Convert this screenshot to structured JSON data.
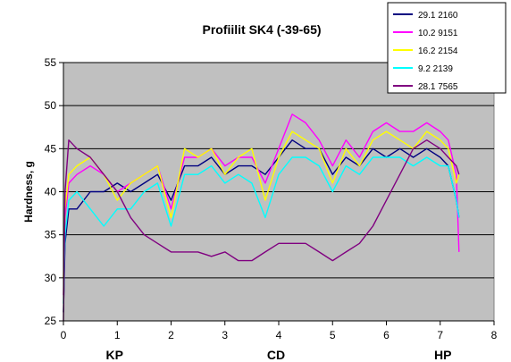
{
  "chart_data": {
    "type": "line",
    "title": "Profiilit SK4 (-39-65)",
    "xlabel": "",
    "ylabel": "Hardness, g",
    "xlim": [
      0,
      8
    ],
    "ylim": [
      25,
      55
    ],
    "x_ticks": [
      0,
      1,
      2,
      3,
      4,
      5,
      6,
      7,
      8
    ],
    "y_ticks": [
      25,
      30,
      35,
      40,
      45,
      50,
      55
    ],
    "grid": "horizontal",
    "plot_background": "#c0c0c0",
    "legend_position": "top-right",
    "position_markers": [
      {
        "label": "KP",
        "x": 0.95
      },
      {
        "label": "CD",
        "x": 3.95
      },
      {
        "label": "HP",
        "x": 7.05
      }
    ],
    "series": [
      {
        "name": "29.1 2160",
        "color": "#000080",
        "x": [
          0,
          0.03,
          0.1,
          0.25,
          0.5,
          0.75,
          1.0,
          1.25,
          1.5,
          1.75,
          2.0,
          2.25,
          2.5,
          2.75,
          3.0,
          3.25,
          3.5,
          3.75,
          4.0,
          4.25,
          4.5,
          4.75,
          5.0,
          5.25,
          5.5,
          5.75,
          6.0,
          6.25,
          6.5,
          6.75,
          7.0,
          7.15,
          7.3,
          7.35
        ],
        "values": [
          26,
          34,
          38,
          38,
          40,
          40,
          41,
          40,
          41,
          42,
          39,
          43,
          43,
          44,
          42,
          43,
          43,
          42,
          44,
          46,
          45,
          45,
          42,
          44,
          43,
          45,
          44,
          45,
          44,
          45,
          44,
          43,
          39,
          37
        ]
      },
      {
        "name": "10.2 9151",
        "color": "#ff00ff",
        "x": [
          0,
          0.03,
          0.1,
          0.25,
          0.5,
          0.75,
          1.0,
          1.25,
          1.5,
          1.75,
          2.0,
          2.25,
          2.5,
          2.75,
          3.0,
          3.25,
          3.5,
          3.75,
          4.0,
          4.25,
          4.5,
          4.75,
          5.0,
          5.25,
          5.5,
          5.75,
          6.0,
          6.25,
          6.5,
          6.75,
          7.0,
          7.15,
          7.3,
          7.35
        ],
        "values": [
          28,
          37,
          41,
          42,
          43,
          42,
          40,
          41,
          42,
          43,
          38,
          44,
          44,
          45,
          43,
          44,
          44,
          41,
          45,
          49,
          48,
          46,
          43,
          46,
          44,
          47,
          48,
          47,
          47,
          48,
          47,
          46,
          42,
          33
        ]
      },
      {
        "name": "16.2 2154",
        "color": "#ffff00",
        "x": [
          0,
          0.03,
          0.1,
          0.25,
          0.5,
          0.75,
          1.0,
          1.25,
          1.5,
          1.75,
          2.0,
          2.25,
          2.5,
          2.75,
          3.0,
          3.25,
          3.5,
          3.75,
          4.0,
          4.25,
          4.5,
          4.75,
          5.0,
          5.25,
          5.5,
          5.75,
          6.0,
          6.25,
          6.5,
          6.75,
          7.0,
          7.15,
          7.3,
          7.35
        ],
        "values": [
          30,
          38,
          42,
          43,
          44,
          42,
          39,
          41,
          42,
          43,
          37,
          45,
          44,
          45,
          42,
          44,
          45,
          39,
          44,
          47,
          46,
          45,
          41,
          45,
          43,
          46,
          47,
          46,
          45,
          47,
          46,
          45,
          41,
          42
        ]
      },
      {
        "name": "9.2 2139",
        "color": "#00ffff",
        "x": [
          0,
          0.03,
          0.1,
          0.25,
          0.5,
          0.75,
          1.0,
          1.25,
          1.5,
          1.75,
          2.0,
          2.25,
          2.5,
          2.75,
          3.0,
          3.25,
          3.5,
          3.75,
          4.0,
          4.25,
          4.5,
          4.75,
          5.0,
          5.25,
          5.5,
          5.75,
          6.0,
          6.25,
          6.5,
          6.75,
          7.0,
          7.15,
          7.3,
          7.35
        ],
        "values": [
          27,
          35,
          39,
          40,
          38,
          36,
          38,
          38,
          40,
          41,
          36,
          42,
          42,
          43,
          41,
          42,
          41,
          37,
          42,
          44,
          44,
          43,
          40,
          43,
          42,
          44,
          44,
          44,
          43,
          44,
          43,
          43,
          39,
          37
        ]
      },
      {
        "name": "28.1 7565",
        "color": "#800080",
        "x": [
          0,
          0.03,
          0.1,
          0.25,
          0.5,
          0.75,
          1.0,
          1.25,
          1.5,
          1.75,
          2.0,
          2.25,
          2.5,
          2.75,
          3.0,
          3.25,
          3.5,
          3.75,
          4.0,
          4.25,
          4.5,
          4.75,
          5.0,
          5.25,
          5.5,
          5.75,
          6.0,
          6.25,
          6.5,
          6.75,
          7.0,
          7.15,
          7.3,
          7.35
        ],
        "values": [
          25,
          40,
          46,
          45,
          44,
          42,
          40,
          37,
          35,
          34,
          33,
          33,
          33,
          32.5,
          33,
          32,
          32,
          33,
          34,
          34,
          34,
          33,
          32,
          33,
          34,
          36,
          39,
          42,
          45,
          46,
          45,
          44,
          43,
          42
        ]
      }
    ]
  }
}
